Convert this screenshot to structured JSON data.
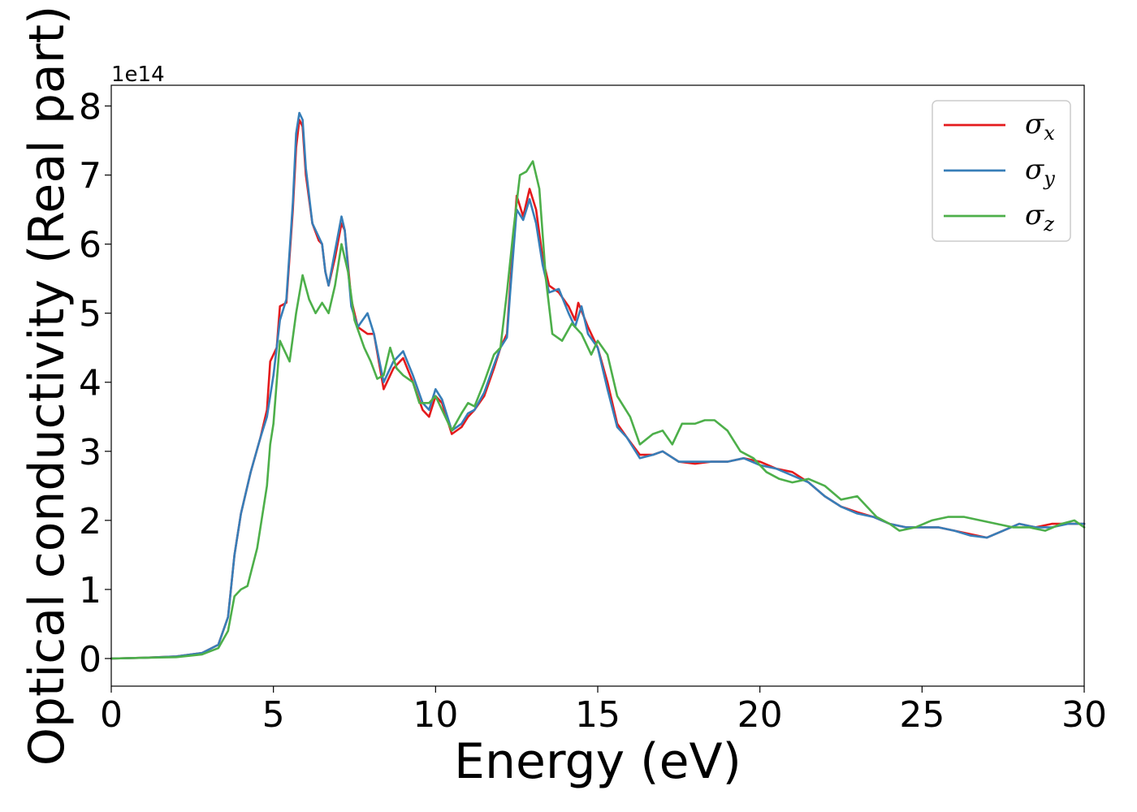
{
  "chart_data": {
    "type": "line",
    "title": "",
    "xlabel": "Energy (eV)",
    "ylabel": "Optical conductivity (Real part)",
    "y_offset_text": "1e14",
    "xlim": [
      0,
      30
    ],
    "ylim": [
      -0.4,
      8.3
    ],
    "y_scale": 100000000000000.0,
    "x_ticks": [
      0,
      5,
      10,
      15,
      20,
      25,
      30
    ],
    "x_tick_labels": [
      "0",
      "5",
      "10",
      "15",
      "20",
      "25",
      "30"
    ],
    "y_ticks": [
      0,
      1,
      2,
      3,
      4,
      5,
      6,
      7,
      8
    ],
    "y_tick_labels": [
      "0",
      "1",
      "2",
      "3",
      "4",
      "5",
      "6",
      "7",
      "8"
    ],
    "grid": false,
    "legend_position": "top-right",
    "series": [
      {
        "name": "σx",
        "legend_symbol": "σ",
        "legend_subscript": "x",
        "color": "#e41a1c",
        "points": [
          [
            0,
            0
          ],
          [
            1,
            0.01
          ],
          [
            2,
            0.03
          ],
          [
            2.8,
            0.08
          ],
          [
            3.3,
            0.2
          ],
          [
            3.6,
            0.6
          ],
          [
            3.8,
            1.5
          ],
          [
            4.0,
            2.1
          ],
          [
            4.3,
            2.7
          ],
          [
            4.6,
            3.2
          ],
          [
            4.8,
            3.6
          ],
          [
            4.9,
            4.3
          ],
          [
            5.1,
            4.5
          ],
          [
            5.2,
            5.1
          ],
          [
            5.4,
            5.15
          ],
          [
            5.6,
            6.5
          ],
          [
            5.7,
            7.4
          ],
          [
            5.8,
            7.8
          ],
          [
            5.9,
            7.7
          ],
          [
            6.0,
            7.0
          ],
          [
            6.2,
            6.3
          ],
          [
            6.4,
            6.05
          ],
          [
            6.5,
            6.0
          ],
          [
            6.6,
            5.6
          ],
          [
            6.7,
            5.4
          ],
          [
            6.9,
            5.8
          ],
          [
            7.1,
            6.3
          ],
          [
            7.2,
            6.2
          ],
          [
            7.4,
            5.2
          ],
          [
            7.6,
            4.8
          ],
          [
            7.9,
            4.7
          ],
          [
            8.1,
            4.7
          ],
          [
            8.4,
            3.9
          ],
          [
            8.7,
            4.2
          ],
          [
            9.0,
            4.35
          ],
          [
            9.3,
            4.0
          ],
          [
            9.6,
            3.6
          ],
          [
            9.8,
            3.5
          ],
          [
            10.0,
            3.8
          ],
          [
            10.2,
            3.7
          ],
          [
            10.5,
            3.25
          ],
          [
            10.8,
            3.35
          ],
          [
            11.0,
            3.5
          ],
          [
            11.2,
            3.6
          ],
          [
            11.5,
            3.8
          ],
          [
            11.8,
            4.2
          ],
          [
            12.0,
            4.5
          ],
          [
            12.2,
            4.7
          ],
          [
            12.3,
            5.4
          ],
          [
            12.5,
            6.7
          ],
          [
            12.7,
            6.4
          ],
          [
            12.9,
            6.8
          ],
          [
            13.1,
            6.5
          ],
          [
            13.3,
            5.8
          ],
          [
            13.5,
            5.4
          ],
          [
            13.8,
            5.3
          ],
          [
            14.1,
            5.1
          ],
          [
            14.3,
            4.9
          ],
          [
            14.4,
            5.15
          ],
          [
            14.7,
            4.8
          ],
          [
            15.0,
            4.5
          ],
          [
            15.3,
            4.0
          ],
          [
            15.6,
            3.4
          ],
          [
            15.9,
            3.2
          ],
          [
            16.3,
            2.95
          ],
          [
            16.7,
            2.95
          ],
          [
            17.0,
            3.0
          ],
          [
            17.5,
            2.85
          ],
          [
            18.0,
            2.82
          ],
          [
            18.5,
            2.85
          ],
          [
            19.0,
            2.85
          ],
          [
            19.5,
            2.9
          ],
          [
            20.0,
            2.85
          ],
          [
            20.5,
            2.75
          ],
          [
            21.0,
            2.7
          ],
          [
            21.5,
            2.55
          ],
          [
            22.0,
            2.35
          ],
          [
            22.5,
            2.2
          ],
          [
            23.0,
            2.12
          ],
          [
            23.5,
            2.05
          ],
          [
            24.0,
            1.95
          ],
          [
            24.5,
            1.9
          ],
          [
            25.0,
            1.9
          ],
          [
            25.5,
            1.9
          ],
          [
            26.0,
            1.85
          ],
          [
            26.5,
            1.8
          ],
          [
            27.0,
            1.75
          ],
          [
            27.5,
            1.85
          ],
          [
            28.0,
            1.95
          ],
          [
            28.5,
            1.9
          ],
          [
            29.0,
            1.95
          ],
          [
            29.5,
            1.95
          ],
          [
            30.0,
            1.95
          ]
        ]
      },
      {
        "name": "σy",
        "legend_symbol": "σ",
        "legend_subscript": "y",
        "color": "#377eb8",
        "points": [
          [
            0,
            0
          ],
          [
            1,
            0.01
          ],
          [
            2,
            0.03
          ],
          [
            2.8,
            0.08
          ],
          [
            3.3,
            0.2
          ],
          [
            3.6,
            0.6
          ],
          [
            3.8,
            1.5
          ],
          [
            4.0,
            2.1
          ],
          [
            4.3,
            2.7
          ],
          [
            4.6,
            3.2
          ],
          [
            4.8,
            3.5
          ],
          [
            5.0,
            4.1
          ],
          [
            5.2,
            4.9
          ],
          [
            5.4,
            5.2
          ],
          [
            5.6,
            6.6
          ],
          [
            5.7,
            7.6
          ],
          [
            5.8,
            7.9
          ],
          [
            5.9,
            7.8
          ],
          [
            6.0,
            7.1
          ],
          [
            6.2,
            6.3
          ],
          [
            6.4,
            6.1
          ],
          [
            6.5,
            6.0
          ],
          [
            6.6,
            5.6
          ],
          [
            6.7,
            5.4
          ],
          [
            6.9,
            5.9
          ],
          [
            7.1,
            6.4
          ],
          [
            7.2,
            6.2
          ],
          [
            7.4,
            5.1
          ],
          [
            7.6,
            4.8
          ],
          [
            7.9,
            5.0
          ],
          [
            8.1,
            4.7
          ],
          [
            8.4,
            4.0
          ],
          [
            8.7,
            4.3
          ],
          [
            9.0,
            4.45
          ],
          [
            9.3,
            4.1
          ],
          [
            9.6,
            3.7
          ],
          [
            9.8,
            3.6
          ],
          [
            10.0,
            3.9
          ],
          [
            10.2,
            3.75
          ],
          [
            10.5,
            3.3
          ],
          [
            10.8,
            3.4
          ],
          [
            11.0,
            3.55
          ],
          [
            11.2,
            3.6
          ],
          [
            11.5,
            3.85
          ],
          [
            11.8,
            4.25
          ],
          [
            12.0,
            4.5
          ],
          [
            12.2,
            4.65
          ],
          [
            12.3,
            5.3
          ],
          [
            12.5,
            6.5
          ],
          [
            12.7,
            6.35
          ],
          [
            12.9,
            6.65
          ],
          [
            13.1,
            6.3
          ],
          [
            13.3,
            5.7
          ],
          [
            13.5,
            5.3
          ],
          [
            13.8,
            5.35
          ],
          [
            14.1,
            5.0
          ],
          [
            14.3,
            4.8
          ],
          [
            14.5,
            5.1
          ],
          [
            14.7,
            4.7
          ],
          [
            15.0,
            4.5
          ],
          [
            15.3,
            3.9
          ],
          [
            15.6,
            3.35
          ],
          [
            15.9,
            3.2
          ],
          [
            16.3,
            2.9
          ],
          [
            16.7,
            2.95
          ],
          [
            17.0,
            3.0
          ],
          [
            17.5,
            2.85
          ],
          [
            18.0,
            2.85
          ],
          [
            18.5,
            2.85
          ],
          [
            19.0,
            2.85
          ],
          [
            19.5,
            2.9
          ],
          [
            20.0,
            2.8
          ],
          [
            20.5,
            2.75
          ],
          [
            21.0,
            2.65
          ],
          [
            21.5,
            2.55
          ],
          [
            22.0,
            2.35
          ],
          [
            22.5,
            2.2
          ],
          [
            23.0,
            2.1
          ],
          [
            23.5,
            2.05
          ],
          [
            24.0,
            1.95
          ],
          [
            24.5,
            1.9
          ],
          [
            25.0,
            1.9
          ],
          [
            25.5,
            1.9
          ],
          [
            26.0,
            1.85
          ],
          [
            26.5,
            1.78
          ],
          [
            27.0,
            1.75
          ],
          [
            27.5,
            1.85
          ],
          [
            28.0,
            1.95
          ],
          [
            28.5,
            1.9
          ],
          [
            29.0,
            1.9
          ],
          [
            29.5,
            1.95
          ],
          [
            30.0,
            1.95
          ]
        ]
      },
      {
        "name": "σz",
        "legend_symbol": "σ",
        "legend_subscript": "z",
        "color": "#4daf4a",
        "points": [
          [
            0,
            0
          ],
          [
            1,
            0.01
          ],
          [
            2,
            0.02
          ],
          [
            2.8,
            0.06
          ],
          [
            3.3,
            0.15
          ],
          [
            3.6,
            0.4
          ],
          [
            3.8,
            0.9
          ],
          [
            4.0,
            1.0
          ],
          [
            4.2,
            1.05
          ],
          [
            4.5,
            1.6
          ],
          [
            4.8,
            2.5
          ],
          [
            4.9,
            3.1
          ],
          [
            5.0,
            3.4
          ],
          [
            5.1,
            4.0
          ],
          [
            5.2,
            4.6
          ],
          [
            5.3,
            4.5
          ],
          [
            5.5,
            4.3
          ],
          [
            5.7,
            5.0
          ],
          [
            5.9,
            5.55
          ],
          [
            6.1,
            5.2
          ],
          [
            6.3,
            5.0
          ],
          [
            6.5,
            5.15
          ],
          [
            6.7,
            5.0
          ],
          [
            6.9,
            5.4
          ],
          [
            7.1,
            6.0
          ],
          [
            7.3,
            5.6
          ],
          [
            7.5,
            4.9
          ],
          [
            7.8,
            4.5
          ],
          [
            8.0,
            4.3
          ],
          [
            8.2,
            4.05
          ],
          [
            8.4,
            4.1
          ],
          [
            8.6,
            4.5
          ],
          [
            8.8,
            4.2
          ],
          [
            9.0,
            4.1
          ],
          [
            9.3,
            4.0
          ],
          [
            9.5,
            3.7
          ],
          [
            9.8,
            3.7
          ],
          [
            10.0,
            3.8
          ],
          [
            10.2,
            3.6
          ],
          [
            10.5,
            3.3
          ],
          [
            10.8,
            3.55
          ],
          [
            11.0,
            3.7
          ],
          [
            11.2,
            3.65
          ],
          [
            11.5,
            4.0
          ],
          [
            11.8,
            4.4
          ],
          [
            12.0,
            4.5
          ],
          [
            12.2,
            5.3
          ],
          [
            12.4,
            6.2
          ],
          [
            12.6,
            7.0
          ],
          [
            12.8,
            7.05
          ],
          [
            13.0,
            7.2
          ],
          [
            13.2,
            6.8
          ],
          [
            13.4,
            5.5
          ],
          [
            13.6,
            4.7
          ],
          [
            13.9,
            4.6
          ],
          [
            14.2,
            4.85
          ],
          [
            14.5,
            4.7
          ],
          [
            14.8,
            4.4
          ],
          [
            15.0,
            4.6
          ],
          [
            15.3,
            4.4
          ],
          [
            15.6,
            3.8
          ],
          [
            16.0,
            3.5
          ],
          [
            16.3,
            3.1
          ],
          [
            16.7,
            3.25
          ],
          [
            17.0,
            3.3
          ],
          [
            17.3,
            3.1
          ],
          [
            17.6,
            3.4
          ],
          [
            18.0,
            3.4
          ],
          [
            18.3,
            3.45
          ],
          [
            18.6,
            3.45
          ],
          [
            19.0,
            3.3
          ],
          [
            19.4,
            3.0
          ],
          [
            19.8,
            2.9
          ],
          [
            20.2,
            2.7
          ],
          [
            20.6,
            2.6
          ],
          [
            21.0,
            2.55
          ],
          [
            21.5,
            2.6
          ],
          [
            22.0,
            2.5
          ],
          [
            22.5,
            2.3
          ],
          [
            23.0,
            2.35
          ],
          [
            23.3,
            2.2
          ],
          [
            23.6,
            2.05
          ],
          [
            24.0,
            1.95
          ],
          [
            24.3,
            1.85
          ],
          [
            24.8,
            1.9
          ],
          [
            25.3,
            2.0
          ],
          [
            25.8,
            2.05
          ],
          [
            26.3,
            2.05
          ],
          [
            26.8,
            2.0
          ],
          [
            27.3,
            1.95
          ],
          [
            27.8,
            1.9
          ],
          [
            28.3,
            1.9
          ],
          [
            28.8,
            1.85
          ],
          [
            29.3,
            1.95
          ],
          [
            29.7,
            2.0
          ],
          [
            30.0,
            1.9
          ]
        ]
      }
    ]
  }
}
